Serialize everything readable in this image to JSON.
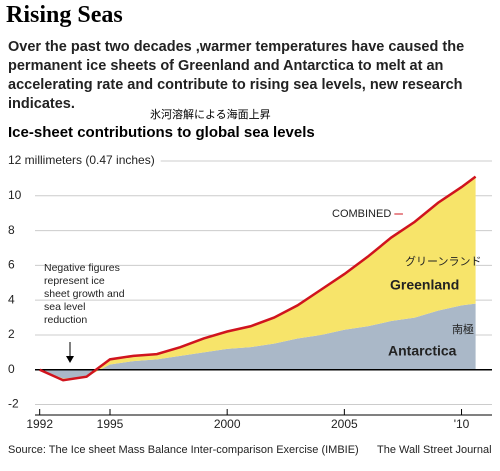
{
  "chart_data": {
    "type": "area",
    "title": "Rising Seas",
    "subtitle": "Over the past two decades ,warmer temperatures have caused the permanent ice sheets of Greenland and Antarctica to melt at an accelerating rate and contribute to rising sea levels, new research indicates.",
    "annotation_jp": "氷河溶解による海面上昇",
    "chart_title": "Ice-sheet contributions to global sea levels",
    "note": "Negative figures represent ice sheet growth and sea level reduction",
    "greenland_jp": "グリーンランド",
    "antarctica_jp": "南極",
    "source": "Source: The Ice sheet Mass Balance Inter-comparison Exercise (IMBIE)",
    "credit": "The Wall Street Journal",
    "x": [
      1992,
      1993,
      1994,
      1995,
      1996,
      1997,
      1998,
      1999,
      2000,
      2001,
      2002,
      2003,
      2004,
      2005,
      2006,
      2007,
      2008,
      2009,
      2010,
      2010.6
    ],
    "series": [
      {
        "name": "Antarctica",
        "color": "#aab8c8",
        "stacked": true,
        "values": [
          0,
          -0.5,
          -0.4,
          0.3,
          0.5,
          0.6,
          0.8,
          1.0,
          1.2,
          1.3,
          1.5,
          1.8,
          2.0,
          2.3,
          2.5,
          2.8,
          3.0,
          3.4,
          3.7,
          3.8
        ]
      },
      {
        "name": "Greenland",
        "color": "#f7e46a",
        "stacked": true,
        "values": [
          0,
          -0.1,
          0,
          0.3,
          0.3,
          0.3,
          0.5,
          0.8,
          1.0,
          1.2,
          1.5,
          1.9,
          2.6,
          3.2,
          4.0,
          4.8,
          5.5,
          6.2,
          6.8,
          7.3
        ]
      },
      {
        "name": "COMBINED",
        "color": "#d0141e",
        "stacked": false,
        "values": [
          0,
          -0.6,
          -0.4,
          0.6,
          0.8,
          0.9,
          1.3,
          1.8,
          2.2,
          2.5,
          3.0,
          3.7,
          4.6,
          5.5,
          6.5,
          7.6,
          8.5,
          9.6,
          10.5,
          11.1
        ]
      }
    ],
    "xlim": [
      1991.8,
      2011.3
    ],
    "ylim": [
      -2.6,
      12
    ],
    "xticks": [
      1992,
      1995,
      2000,
      2005,
      {
        "value": 2010,
        "label": "'10"
      }
    ],
    "yticks": [
      {
        "value": 12,
        "label": "12 millimeters (0.47 inches)"
      },
      10,
      8,
      6,
      4,
      2,
      0,
      -2
    ],
    "grid": true
  }
}
